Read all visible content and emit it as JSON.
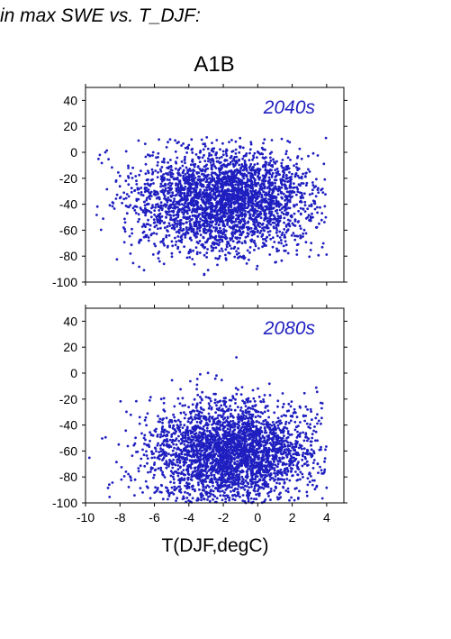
{
  "header": {
    "title": "in max SWE vs. T_DJF:"
  },
  "chart_data": [
    {
      "type": "scatter",
      "title": "A1B",
      "panel_label": "2040s",
      "xlabel": "",
      "ylabel": "",
      "xlim": [
        -10,
        5
      ],
      "ylim": [
        -100,
        50
      ],
      "xticks": [
        "-10",
        "-8",
        "-6",
        "-4",
        "-2",
        "0",
        "2",
        "4"
      ],
      "yticks": [
        "40",
        "20",
        "0",
        "-20",
        "-40",
        "-60",
        "-80",
        "-100"
      ],
      "marker_color": "#1f1fc0",
      "point_cloud": {
        "n_points": 3000,
        "x_center": -2.0,
        "x_spread": 2.6,
        "x_range": [
          -10,
          4
        ],
        "y_center": -37,
        "y_spread": 20,
        "y_range": [
          -95,
          12
        ]
      }
    },
    {
      "type": "scatter",
      "title": "",
      "panel_label": "2080s",
      "xlabel": "T(DJF,degC)",
      "ylabel": "",
      "xlim": [
        -10,
        5
      ],
      "ylim": [
        -100,
        50
      ],
      "xticks": [
        "-10",
        "-8",
        "-6",
        "-4",
        "-2",
        "0",
        "2",
        "4"
      ],
      "yticks": [
        "40",
        "20",
        "0",
        "-20",
        "-40",
        "-60",
        "-80",
        "-100"
      ],
      "marker_color": "#1f1fc0",
      "point_cloud": {
        "n_points": 3000,
        "x_center": -1.5,
        "x_spread": 2.4,
        "x_range": [
          -10,
          4
        ],
        "y_center": -62,
        "y_spread": 20,
        "y_range": [
          -100,
          18
        ]
      }
    }
  ]
}
